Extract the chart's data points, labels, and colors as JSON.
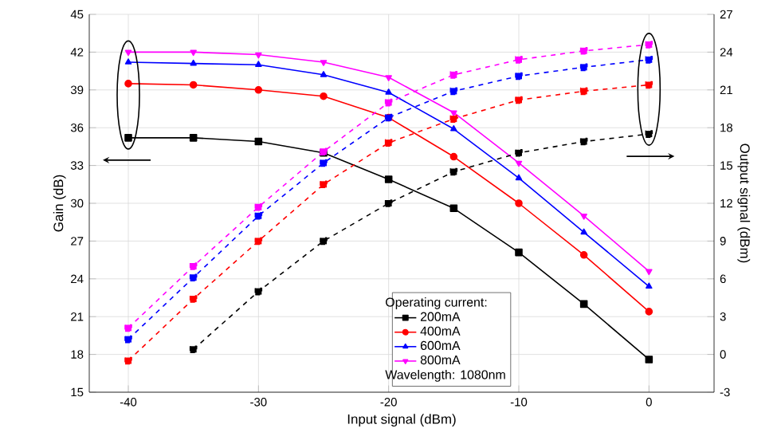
{
  "chart_data": {
    "type": "line",
    "xlabel": "Input signal (dBm)",
    "ylabel": "Gain (dB)",
    "y2label": "Output signal (dBm)",
    "legend_title": "Operating current:",
    "annotations": [
      "Wavelength: 1080nm"
    ],
    "x": [
      -40,
      -35,
      -30,
      -25,
      -20,
      -15,
      -10,
      -5,
      0
    ],
    "xlim": [
      -43,
      5
    ],
    "xticks": [
      -40,
      -30,
      -20,
      -10,
      0
    ],
    "ylim": [
      15,
      45
    ],
    "yticks": [
      15,
      18,
      21,
      24,
      27,
      30,
      33,
      36,
      39,
      42,
      45
    ],
    "y2lim": [
      -3,
      27
    ],
    "y2ticks": [
      -3,
      0,
      3,
      6,
      9,
      12,
      15,
      18,
      21,
      24,
      27
    ],
    "grid": true,
    "legend": "bottom right",
    "series": [
      {
        "name": "200mA",
        "color": "#000000",
        "marker": "square",
        "line_style": "solid",
        "values": [
          35.2,
          35.2,
          34.9,
          34.0,
          31.9,
          29.6,
          26.1,
          22.0,
          17.6
        ]
      },
      {
        "name": "400mA",
        "color": "#ff0000",
        "marker": "circle",
        "line_style": "solid",
        "values": [
          39.5,
          39.4,
          39.0,
          38.5,
          36.8,
          33.7,
          30.0,
          25.9,
          21.4
        ]
      },
      {
        "name": "600mA",
        "color": "#0000ff",
        "marker": "triangle",
        "line_style": "solid",
        "values": [
          41.2,
          41.1,
          41.0,
          40.2,
          38.8,
          35.9,
          32.0,
          27.7,
          23.4
        ]
      },
      {
        "name": "800mA",
        "color": "#ff00ff",
        "marker": "triangle-down",
        "line_style": "solid",
        "values": [
          42.0,
          42.0,
          41.8,
          41.2,
          40.0,
          37.2,
          33.2,
          29.0,
          24.6
        ]
      },
      {
        "color": "#000000",
        "marker": "square",
        "line_style": "dashed",
        "axis": "y2",
        "values": [
          null,
          0.4,
          5.0,
          9.0,
          12.0,
          14.5,
          16.0,
          16.9,
          17.5
        ]
      },
      {
        "color": "#ff0000",
        "marker": "square",
        "line_style": "dashed",
        "axis": "y2",
        "values": [
          -0.5,
          4.4,
          9.0,
          13.5,
          16.8,
          18.7,
          20.2,
          20.9,
          21.4
        ]
      },
      {
        "color": "#0000ff",
        "marker": "square",
        "line_style": "dashed",
        "axis": "y2",
        "values": [
          1.2,
          6.1,
          11.0,
          15.2,
          18.8,
          20.9,
          22.1,
          22.8,
          23.4
        ]
      },
      {
        "color": "#ff00ff",
        "marker": "square",
        "line_style": "dashed",
        "axis": "y2",
        "values": [
          2.1,
          7.0,
          11.7,
          16.1,
          20.0,
          22.2,
          23.4,
          24.1,
          24.6
        ]
      }
    ]
  }
}
